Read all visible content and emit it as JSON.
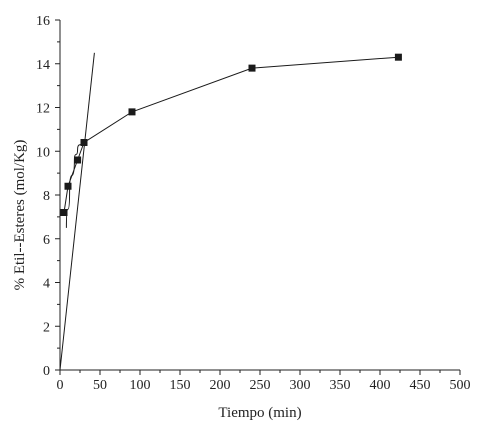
{
  "chart_data": {
    "type": "line",
    "xlabel": "Tiempo (min)",
    "ylabel": "% Etil--Esteres (mol/Kg)",
    "xlim": [
      0,
      500
    ],
    "ylim": [
      0,
      16
    ],
    "x_ticks": [
      0,
      50,
      100,
      150,
      200,
      250,
      300,
      350,
      400,
      450,
      500
    ],
    "y_ticks": [
      0,
      2,
      4,
      6,
      8,
      10,
      12,
      14,
      16
    ],
    "grid": false,
    "series": [
      {
        "kind": "line-markers",
        "marker": "square",
        "color": "#1a1a1a",
        "x": [
          5,
          10,
          22,
          30,
          90,
          240,
          423
        ],
        "y": [
          7.2,
          8.4,
          9.6,
          10.4,
          11.8,
          13.8,
          14.3
        ]
      },
      {
        "kind": "tangent-line",
        "color": "#1a1a1a",
        "x": [
          0,
          43
        ],
        "y": [
          0,
          14.5
        ]
      },
      {
        "kind": "curve",
        "color": "#1a1a1a",
        "x": [
          8,
          12,
          18,
          22,
          28
        ],
        "y": [
          6.5,
          8.2,
          9.6,
          10.1,
          10.5
        ]
      }
    ]
  }
}
